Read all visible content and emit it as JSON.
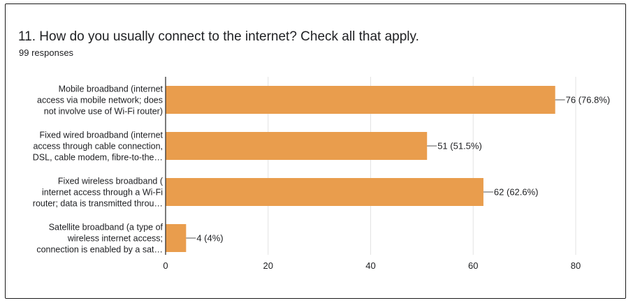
{
  "question": {
    "title": "11. How do you usually connect to the internet? Check all that apply.",
    "responses": "99 responses"
  },
  "colors": {
    "bar": "#e99d4d",
    "grid": "#e3e3e3",
    "axis": "#333333",
    "text": "#202124"
  },
  "chart_data": {
    "type": "bar",
    "orientation": "horizontal",
    "categories": [
      "Mobile broadband (internet access via mobile network; does not involve use of Wi-Fi router)",
      "Fixed wired broadband (internet access through cable connection, DSL, cable modem, fibre-to-the…",
      "Fixed wireless broadband ( internet access through a Wi-Fi router; data is transmitted throu…",
      "Satellite broadband (a type of wireless internet access; connection is enabled by a sat…"
    ],
    "category_lines": [
      [
        "Mobile broadband (internet",
        "access via mobile network; does",
        "not involve use of Wi-Fi router)"
      ],
      [
        "Fixed wired broadband (internet",
        "access through cable connection,",
        "DSL, cable modem, fibre-to-the…"
      ],
      [
        "Fixed wireless broadband (",
        "internet access through a Wi-Fi",
        "router; data is transmitted throu…"
      ],
      [
        "Satellite broadband (a type of",
        "wireless internet access;",
        "connection is enabled by a sat…"
      ]
    ],
    "values": [
      76,
      51,
      62,
      4
    ],
    "data_labels": [
      "76 (76.8%)",
      "51 (51.5%)",
      "62 (62.6%)",
      "4 (4%)"
    ],
    "xlim": [
      0,
      80
    ],
    "xticks": [
      0,
      20,
      40,
      60,
      80
    ],
    "grid": true,
    "legend": "none"
  }
}
